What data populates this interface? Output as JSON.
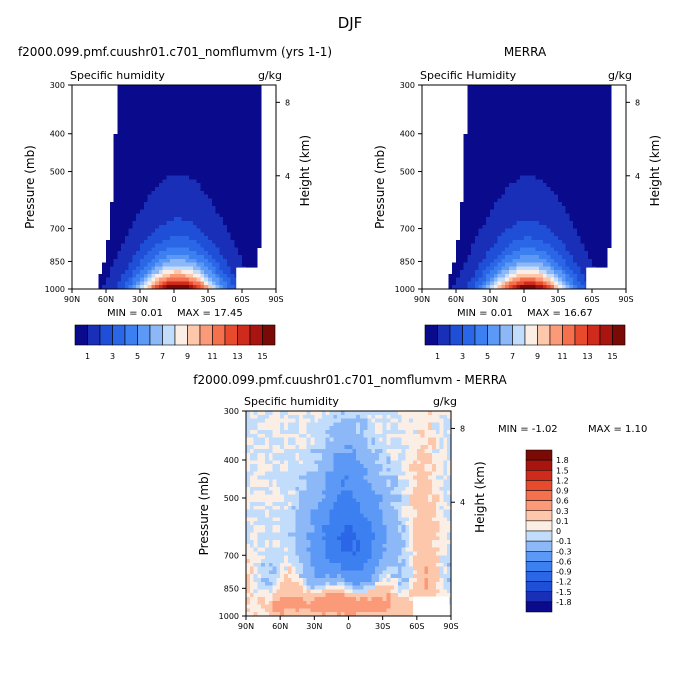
{
  "figure": {
    "title": "DJF"
  },
  "chart_data": [
    {
      "type": "heatmap",
      "panel": "model",
      "title": "f2000.099.pmf.cuushr01.c701_nomflumvm (yrs 1-1)",
      "left_label": "Specific humidity",
      "right_label": "g/kg",
      "xlabel": "",
      "ylabel": "Pressure (mb)",
      "y2label": "Height (km)",
      "x_ticks": [
        "90N",
        "60N",
        "30N",
        "0",
        "30S",
        "60S",
        "90S"
      ],
      "y_ticks": [
        "300",
        "400",
        "500",
        "700",
        "850",
        "1000"
      ],
      "y_tick_values": [
        300,
        400,
        500,
        700,
        850,
        1000
      ],
      "y2_ticks": [
        "8",
        "4"
      ],
      "ylim": [
        300,
        1000
      ],
      "xlim": [
        90,
        -90
      ],
      "min_label": "MIN =   0.01",
      "max_label": "MAX =   17.45",
      "stats": {
        "min": 0.01,
        "max": 17.45
      },
      "colorbar_labels": [
        "1",
        "3",
        "5",
        "7",
        "9",
        "11",
        "13",
        "15"
      ],
      "levels": [
        1,
        2,
        3,
        4,
        5,
        6,
        7,
        8,
        9,
        10,
        11,
        12,
        13,
        14,
        15
      ],
      "peak_value": 17.45,
      "background_value": 0.5,
      "colors": [
        "#0a0a8c",
        "#1a2fb8",
        "#1f4fd6",
        "#2a66e6",
        "#3b7ff0",
        "#5c98f5",
        "#8cb8f8",
        "#c2dcfb",
        "#fbeee4",
        "#fcc7aa",
        "#fb9a78",
        "#f5704c",
        "#e84a2e",
        "#cf2b1c",
        "#a81410",
        "#7a0a06"
      ]
    },
    {
      "type": "heatmap",
      "panel": "obs",
      "title": "MERRA",
      "left_label": "Specific Humidity",
      "right_label": "g/kg",
      "xlabel": "",
      "ylabel": "Pressure (mb)",
      "y2label": "Height (km)",
      "x_ticks": [
        "90N",
        "60N",
        "30N",
        "0",
        "30S",
        "60S",
        "90S"
      ],
      "y_ticks": [
        "300",
        "400",
        "500",
        "700",
        "850",
        "1000"
      ],
      "y_tick_values": [
        300,
        400,
        500,
        700,
        850,
        1000
      ],
      "y2_ticks": [
        "8",
        "4"
      ],
      "ylim": [
        300,
        1000
      ],
      "xlim": [
        90,
        -90
      ],
      "min_label": "MIN =   0.01",
      "max_label": "MAX =   16.67",
      "stats": {
        "min": 0.01,
        "max": 16.67
      },
      "colorbar_labels": [
        "1",
        "3",
        "5",
        "7",
        "9",
        "11",
        "13",
        "15"
      ],
      "levels": [
        1,
        2,
        3,
        4,
        5,
        6,
        7,
        8,
        9,
        10,
        11,
        12,
        13,
        14,
        15
      ],
      "peak_value": 16.67,
      "background_value": 0.5,
      "colors": [
        "#0a0a8c",
        "#1a2fb8",
        "#1f4fd6",
        "#2a66e6",
        "#3b7ff0",
        "#5c98f5",
        "#8cb8f8",
        "#c2dcfb",
        "#fbeee4",
        "#fcc7aa",
        "#fb9a78",
        "#f5704c",
        "#e84a2e",
        "#cf2b1c",
        "#a81410",
        "#7a0a06"
      ]
    },
    {
      "type": "heatmap",
      "panel": "difference",
      "title": "f2000.099.pmf.cuushr01.c701_nomflumvm - MERRA",
      "left_label": "Specific humidity",
      "right_label": "g/kg",
      "xlabel": "",
      "ylabel": "Pressure (mb)",
      "y2label": "Height (km)",
      "x_ticks": [
        "90N",
        "60N",
        "30N",
        "0",
        "30S",
        "60S",
        "90S"
      ],
      "y_ticks": [
        "300",
        "400",
        "500",
        "700",
        "850",
        "1000"
      ],
      "y_tick_values": [
        300,
        400,
        500,
        700,
        850,
        1000
      ],
      "y2_ticks": [
        "8",
        "4"
      ],
      "ylim": [
        300,
        1000
      ],
      "xlim": [
        90,
        -90
      ],
      "min_label": "MIN =   -1.02",
      "max_label": "MAX =    1.10",
      "stats": {
        "min": -1.02,
        "max": 1.1
      },
      "colorbar_labels": [
        "1.8",
        "1.5",
        "1.2",
        "0.9",
        "0.6",
        "0.3",
        "0.1",
        "0",
        "-0.1",
        "-0.3",
        "-0.6",
        "-0.9",
        "-1.2",
        "-1.5",
        "-1.8"
      ],
      "levels": [
        -1.8,
        -1.5,
        -1.2,
        -0.9,
        -0.6,
        -0.3,
        -0.1,
        0,
        0.1,
        0.3,
        0.6,
        0.9,
        1.2,
        1.5,
        1.8
      ],
      "colors": [
        "#0a0a8c",
        "#1a2fb8",
        "#1f4fd6",
        "#2a66e6",
        "#3b7ff0",
        "#5c98f5",
        "#8cb8f8",
        "#c2dcfb",
        "#fbeee4",
        "#fcc7aa",
        "#fb9a78",
        "#f5704c",
        "#e84a2e",
        "#cf2b1c",
        "#a81410",
        "#7a0a06"
      ]
    }
  ]
}
